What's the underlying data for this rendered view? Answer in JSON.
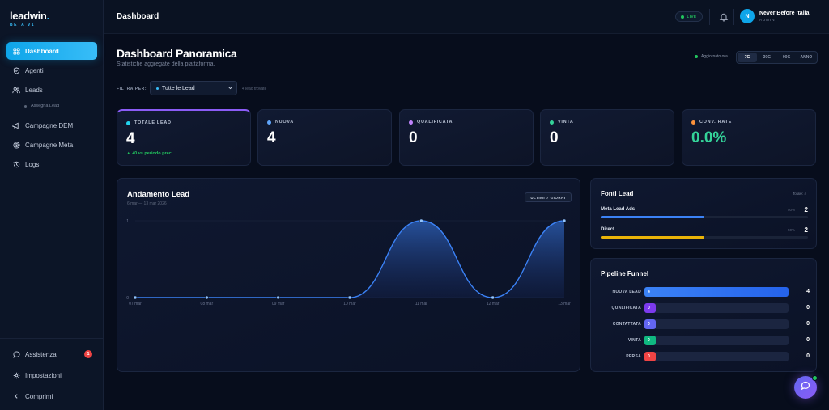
{
  "brand": {
    "name": "leadwin",
    "dot": ".",
    "tag": "BETA V1"
  },
  "sidebar": {
    "items": [
      {
        "label": "Dashboard",
        "icon": "grid-icon"
      },
      {
        "label": "Agenti",
        "icon": "shield-icon"
      },
      {
        "label": "Leads",
        "icon": "users-icon"
      },
      {
        "label": "Campagne DEM",
        "icon": "megaphone-icon"
      },
      {
        "label": "Campagne Meta",
        "icon": "target-icon"
      },
      {
        "label": "Logs",
        "icon": "history-icon"
      }
    ],
    "subitem": "Assegna Lead",
    "bottom": [
      {
        "label": "Assistenza",
        "icon": "chat-icon",
        "badge": "1"
      },
      {
        "label": "Impostazioni",
        "icon": "gear-icon"
      },
      {
        "label": "Comprimi",
        "icon": "chevron-left-icon"
      }
    ]
  },
  "topbar": {
    "title": "Dashboard",
    "live": "LIVE",
    "user": {
      "initial": "N",
      "name": "Never Before Italia",
      "role": "ADMIN"
    }
  },
  "header": {
    "title": "Dashboard Panoramica",
    "subtitle": "Statistiche aggregate della piattaforma.",
    "updated": "Aggiornato ora",
    "ranges": [
      "7G",
      "30G",
      "90G",
      "ANNO"
    ],
    "selected_range": "7G"
  },
  "filter": {
    "label": "FILTRA PER:",
    "value": "Tutte le Lead",
    "count": "4 lead trovate"
  },
  "kpis": [
    {
      "label": "TOTALE LEAD",
      "value": "4",
      "delta": "▲ +0 vs periodo prec.",
      "color": "#22d3ee"
    },
    {
      "label": "NUOVA",
      "value": "4",
      "color": "#60a5fa"
    },
    {
      "label": "QUALIFICATA",
      "value": "0",
      "color": "#c084fc"
    },
    {
      "label": "VINTA",
      "value": "0",
      "color": "#34d399"
    },
    {
      "label": "CONV. RATE",
      "value": "0.0%",
      "color": "#fb923c",
      "value_color": "#34d399"
    }
  ],
  "trend": {
    "title": "Andamento Lead",
    "subtitle": "6 mar — 13 mar 2026",
    "range_pill": "ULTIMI 7 GIORNI"
  },
  "chart_data": {
    "type": "area",
    "x": [
      "07 mar",
      "08 mar",
      "09 mar",
      "10 mar",
      "11 mar",
      "12 mar",
      "13 mar"
    ],
    "series": [
      {
        "values": [
          0,
          0,
          0,
          0,
          1,
          0,
          1
        ]
      }
    ],
    "ylim": [
      0,
      1
    ],
    "yticks": [
      "0",
      "1"
    ],
    "grid": true,
    "color": "#3b82f6"
  },
  "sources": {
    "title": "Fonti Lead",
    "total": "Totale: 4",
    "rows": [
      {
        "name": "Meta Lead Ads",
        "pct": "50%",
        "count": "2",
        "fraction": 0.5,
        "color": "#3b82f6"
      },
      {
        "name": "Direct",
        "pct": "50%",
        "count": "2",
        "fraction": 0.5,
        "color": "#eab308"
      }
    ]
  },
  "funnel": {
    "title": "Pipeline Funnel",
    "rows": [
      {
        "label": "NUOVA LEAD",
        "value": "4",
        "count": "4",
        "fraction": 1.0,
        "color": "#3b82f6"
      },
      {
        "label": "QUALIFICATA",
        "value": "0",
        "count": "0",
        "fraction": 0.0,
        "color": "#7c3aed"
      },
      {
        "label": "CONTATTATA",
        "value": "0",
        "count": "0",
        "fraction": 0.0,
        "color": "#6366f1"
      },
      {
        "label": "VINTA",
        "value": "0",
        "count": "0",
        "fraction": 0.0,
        "color": "#10b981"
      },
      {
        "label": "PERSA",
        "value": "0",
        "count": "0",
        "fraction": 0.0,
        "color": "#ef4444"
      }
    ]
  }
}
